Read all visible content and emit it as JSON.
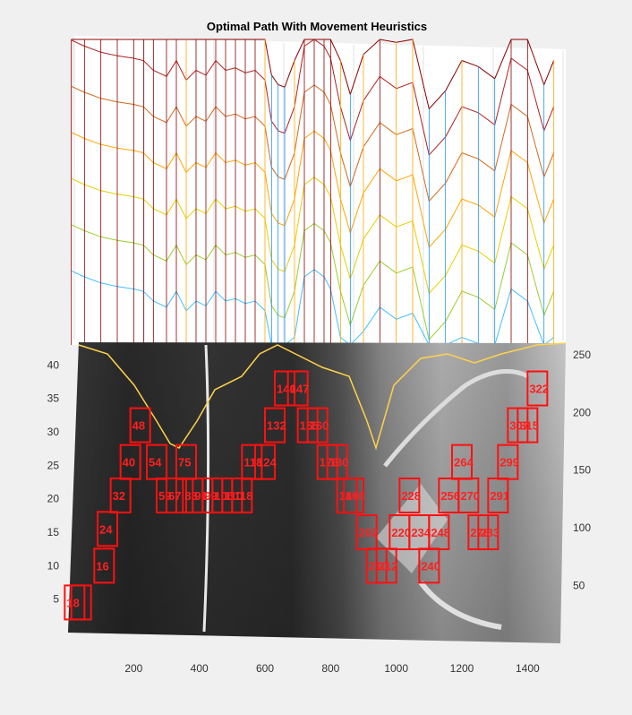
{
  "chart_data": {
    "type": "surface-overlay",
    "title": "Optimal Path With Movement Heuristics",
    "xticks": [
      200,
      400,
      600,
      800,
      1000,
      1200,
      1400
    ],
    "yticks_left": [
      5,
      10,
      15,
      20,
      25,
      30,
      35,
      40
    ],
    "yticks_right": [
      50,
      100,
      150,
      200,
      250
    ],
    "xlim": [
      0,
      1500
    ],
    "ylim_left": [
      0,
      43
    ],
    "ylim_right": [
      0,
      260
    ],
    "grid": true,
    "profile": {
      "x": [
        10,
        50,
        100,
        150,
        200,
        230,
        260,
        300,
        330,
        360,
        390,
        420,
        450,
        480,
        510,
        540,
        570,
        600,
        620,
        640,
        660,
        690,
        720,
        750,
        780,
        800,
        830,
        860,
        900,
        950,
        1000,
        1050,
        1100,
        1150,
        1200,
        1250,
        1300,
        1350,
        1400,
        1450,
        1480
      ],
      "top": [
        255,
        250,
        245,
        242,
        240,
        238,
        230,
        225,
        238,
        222,
        230,
        226,
        238,
        230,
        232,
        228,
        230,
        222,
        188,
        180,
        178,
        200,
        250,
        256,
        250,
        240,
        200,
        172,
        205,
        225,
        215,
        220,
        160,
        175,
        200,
        195,
        185,
        240,
        230,
        180,
        200
      ]
    },
    "path_boxes": [
      {
        "x": 20,
        "y": 4.5,
        "label": "1"
      },
      {
        "x": 40,
        "y": 4.5,
        "label": "8"
      },
      {
        "x": 110,
        "y": 10,
        "label": "16"
      },
      {
        "x": 120,
        "y": 15.5,
        "label": "24"
      },
      {
        "x": 160,
        "y": 20.5,
        "label": "32"
      },
      {
        "x": 190,
        "y": 25.5,
        "label": "40"
      },
      {
        "x": 220,
        "y": 31,
        "label": "48"
      },
      {
        "x": 270,
        "y": 25.5,
        "label": "54"
      },
      {
        "x": 300,
        "y": 20.5,
        "label": "59"
      },
      {
        "x": 330,
        "y": 20.5,
        "label": "67"
      },
      {
        "x": 360,
        "y": 25.5,
        "label": "75"
      },
      {
        "x": 380,
        "y": 20.5,
        "label": "83"
      },
      {
        "x": 410,
        "y": 20.5,
        "label": "91"
      },
      {
        "x": 440,
        "y": 20.5,
        "label": "99"
      },
      {
        "x": 470,
        "y": 20.5,
        "label": "106"
      },
      {
        "x": 500,
        "y": 20.5,
        "label": "110"
      },
      {
        "x": 530,
        "y": 20.5,
        "label": "118"
      },
      {
        "x": 560,
        "y": 25.5,
        "label": "118"
      },
      {
        "x": 600,
        "y": 25.5,
        "label": "124"
      },
      {
        "x": 630,
        "y": 31,
        "label": "132"
      },
      {
        "x": 660,
        "y": 36.5,
        "label": "140"
      },
      {
        "x": 700,
        "y": 36.5,
        "label": "147"
      },
      {
        "x": 730,
        "y": 31,
        "label": "155"
      },
      {
        "x": 760,
        "y": 31,
        "label": "160"
      },
      {
        "x": 790,
        "y": 25.5,
        "label": "176"
      },
      {
        "x": 820,
        "y": 25.5,
        "label": "180"
      },
      {
        "x": 850,
        "y": 20.5,
        "label": "186"
      },
      {
        "x": 870,
        "y": 20.5,
        "label": "196"
      },
      {
        "x": 910,
        "y": 15,
        "label": "202"
      },
      {
        "x": 940,
        "y": 10,
        "label": "210"
      },
      {
        "x": 970,
        "y": 10,
        "label": "212"
      },
      {
        "x": 1010,
        "y": 15,
        "label": "220"
      },
      {
        "x": 1040,
        "y": 20.5,
        "label": "228"
      },
      {
        "x": 1070,
        "y": 15,
        "label": "234"
      },
      {
        "x": 1100,
        "y": 10,
        "label": "240"
      },
      {
        "x": 1130,
        "y": 15,
        "label": "248"
      },
      {
        "x": 1160,
        "y": 20.5,
        "label": "256"
      },
      {
        "x": 1200,
        "y": 25.5,
        "label": "264"
      },
      {
        "x": 1220,
        "y": 20.5,
        "label": "270"
      },
      {
        "x": 1250,
        "y": 15,
        "label": "276"
      },
      {
        "x": 1280,
        "y": 15,
        "label": "283"
      },
      {
        "x": 1310,
        "y": 20.5,
        "label": "291"
      },
      {
        "x": 1340,
        "y": 25.5,
        "label": "299"
      },
      {
        "x": 1370,
        "y": 31,
        "label": "307"
      },
      {
        "x": 1400,
        "y": 31,
        "label": "315"
      },
      {
        "x": 1430,
        "y": 36.5,
        "label": "322"
      }
    ]
  }
}
